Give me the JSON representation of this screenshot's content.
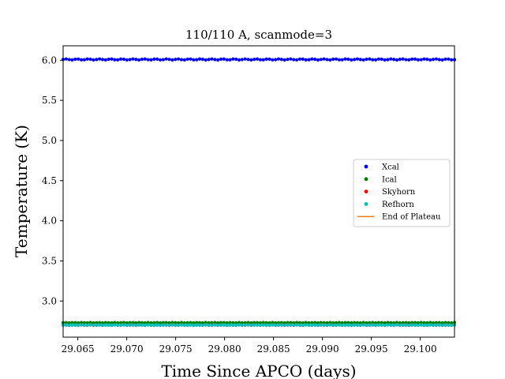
{
  "chart_data": {
    "type": "scatter",
    "title": "110/110 A, scanmode=3",
    "xlabel": "Time Since APCO (days)",
    "ylabel": "Temperature (K)",
    "xlim": [
      29.0635,
      29.1035
    ],
    "ylim": [
      2.55,
      6.18
    ],
    "x_ticks": [
      29.065,
      29.07,
      29.075,
      29.08,
      29.085,
      29.09,
      29.095,
      29.1
    ],
    "x_tick_labels": [
      "29.065",
      "29.070",
      "29.075",
      "29.080",
      "29.085",
      "29.090",
      "29.095",
      "29.100"
    ],
    "y_ticks": [
      3.0,
      3.5,
      4.0,
      4.5,
      5.0,
      5.5,
      6.0
    ],
    "y_tick_labels": [
      "3.0",
      "3.5",
      "4.0",
      "4.5",
      "5.0",
      "5.5",
      "6.0"
    ],
    "grid": false,
    "legend_position": "center-right",
    "x_range_points": [
      29.0635,
      29.1035
    ],
    "points_per_series": 130,
    "series": [
      {
        "name": "Xcal",
        "color": "#0000ff",
        "marker": "point",
        "value": 6.01
      },
      {
        "name": "Ical",
        "color": "#008000",
        "marker": "point",
        "value": 2.73
      },
      {
        "name": "Skyhorn",
        "color": "#ff0000",
        "marker": "point",
        "value": 2.7
      },
      {
        "name": "Refhorn",
        "color": "#00bfbf",
        "marker": "point",
        "value": 2.7
      },
      {
        "name": "End of Plateau",
        "color": "#ff7f0e",
        "marker": "line",
        "value": null
      }
    ]
  }
}
